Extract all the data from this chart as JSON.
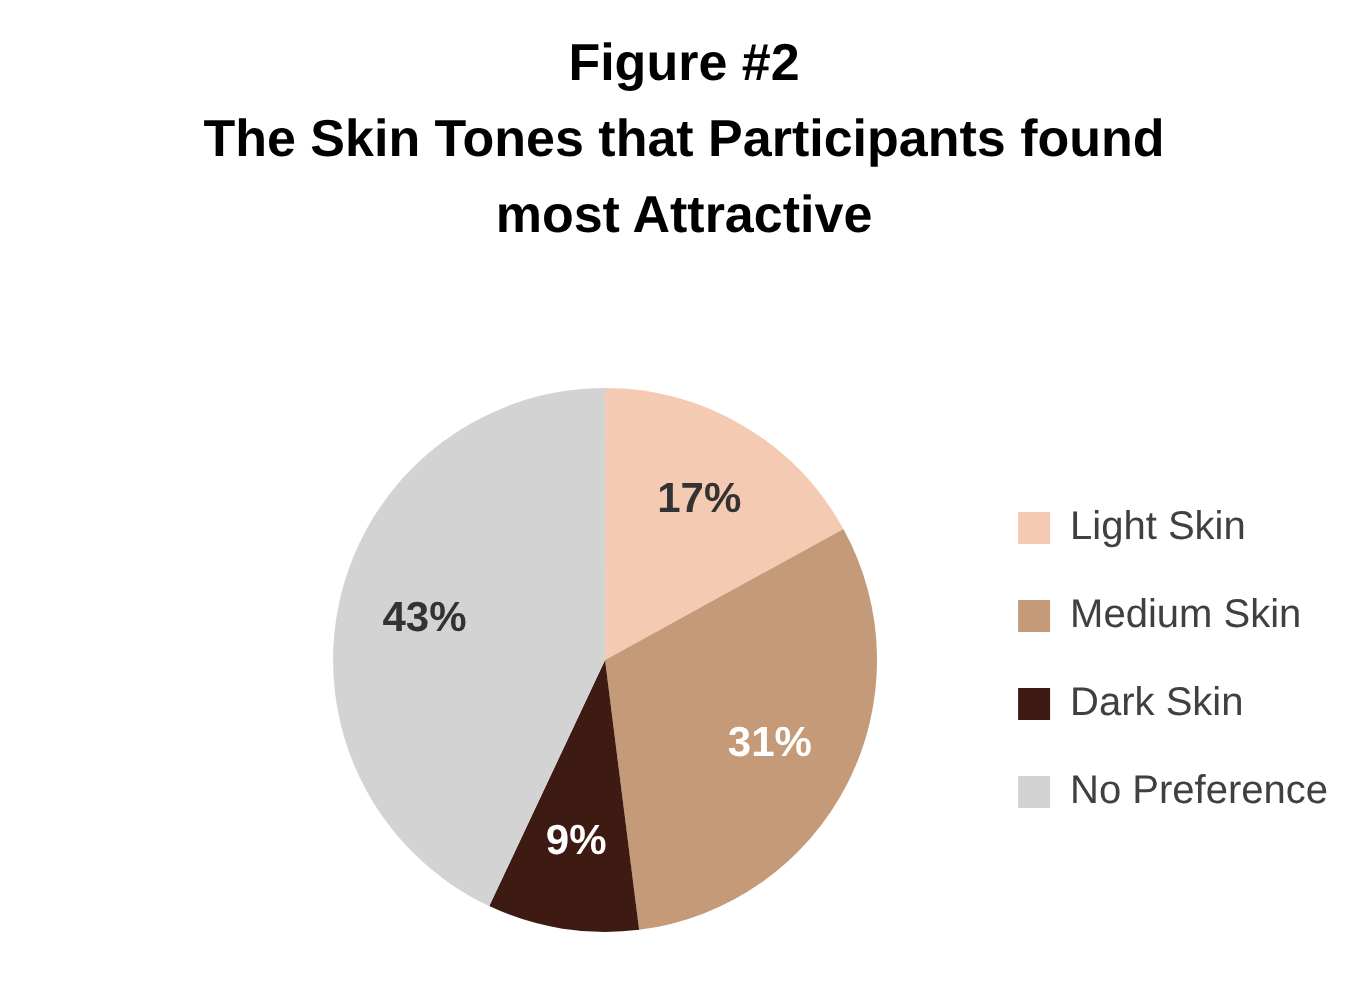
{
  "chart_data": {
    "type": "pie",
    "title": "Figure #2",
    "subtitle": "The Skin Tones that Participants found most Attractive",
    "categories": [
      "Light Skin",
      "Medium Skin",
      "Dark Skin",
      "No Preference"
    ],
    "values": [
      17,
      31,
      9,
      43
    ],
    "value_labels": [
      "17%",
      "31%",
      "9%",
      "43%"
    ],
    "colors": [
      "#f4cbb2",
      "#c49a78",
      "#3e1b12",
      "#d3d3d3"
    ],
    "legend": "right"
  }
}
